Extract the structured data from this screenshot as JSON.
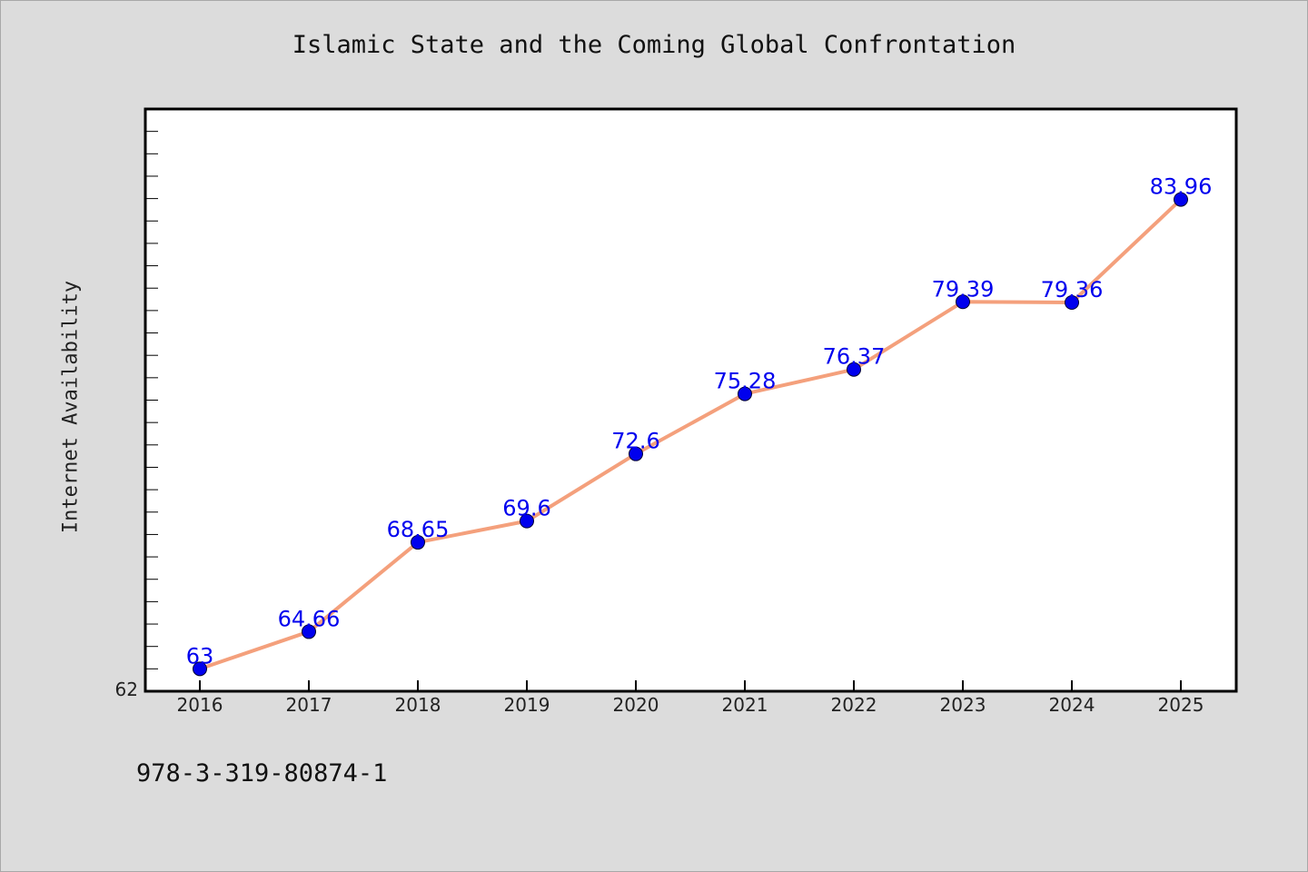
{
  "chart_data": {
    "type": "line",
    "title": "Islamic State and the Coming Global Confrontation",
    "xlabel": "",
    "ylabel": "Internet Availability",
    "categories": [
      "2016",
      "2017",
      "2018",
      "2019",
      "2020",
      "2021",
      "2022",
      "2023",
      "2024",
      "2025"
    ],
    "series": [
      {
        "values": [
          63,
          64.66,
          68.65,
          69.6,
          72.6,
          75.28,
          76.37,
          79.39,
          79.36,
          83.96
        ],
        "data_labels": [
          "63",
          "64.66",
          "68.65",
          "69.6",
          "72.6",
          "75.28",
          "76.37",
          "79.39",
          "79.36",
          "83.96"
        ]
      }
    ],
    "ylim": [
      62,
      88
    ],
    "y_tick_labels": [
      "62"
    ],
    "grid": false,
    "legend": "none",
    "colors": {
      "line": "#f4a07c",
      "marker": "#0000ee",
      "data_label": "#0000ee",
      "plot_background": "#ffffff",
      "page_background": "#dcdcdc"
    }
  },
  "footer": {
    "identifier": "978-3-319-80874-1"
  }
}
